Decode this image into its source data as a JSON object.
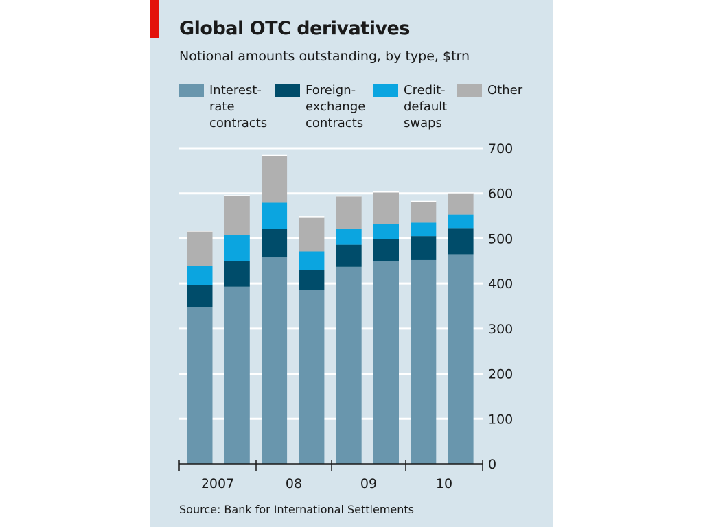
{
  "chart_data": {
    "type": "bar",
    "stacked": true,
    "title": "Global OTC derivatives",
    "subtitle": "Notional amounts outstanding, by type, $trn",
    "source": "Source: Bank for International Settlements",
    "ylim": [
      0,
      700
    ],
    "yticks": [
      "0",
      "100",
      "200",
      "300",
      "400",
      "500",
      "600",
      "700"
    ],
    "ytick_values": [
      0,
      100,
      200,
      300,
      400,
      500,
      600,
      700
    ],
    "year_labels": [
      "2007",
      "08",
      "09",
      "10"
    ],
    "grid": true,
    "legend_position": "top",
    "categories": [
      "2007 H1",
      "2007 H2",
      "2008 H1",
      "2008 H2",
      "2009 H1",
      "2009 H2",
      "2010 H1",
      "2010 H2"
    ],
    "series": [
      {
        "name": "Interest-\nrate\ncontracts",
        "color": "#6996ad",
        "values": [
          347,
          393,
          458,
          385,
          437,
          450,
          452,
          465
        ]
      },
      {
        "name": "Foreign-\nexchange\ncontracts",
        "color": "#004c6a",
        "values": [
          49,
          57,
          63,
          45,
          49,
          49,
          53,
          58
        ]
      },
      {
        "name": "Credit-\ndefault\nswaps",
        "color": "#0ba5e0",
        "values": [
          43,
          58,
          58,
          41,
          36,
          33,
          30,
          30
        ]
      },
      {
        "name": "Other",
        "color": "#b0b0b0",
        "values": [
          77,
          87,
          105,
          77,
          72,
          71,
          47,
          48
        ]
      }
    ]
  }
}
